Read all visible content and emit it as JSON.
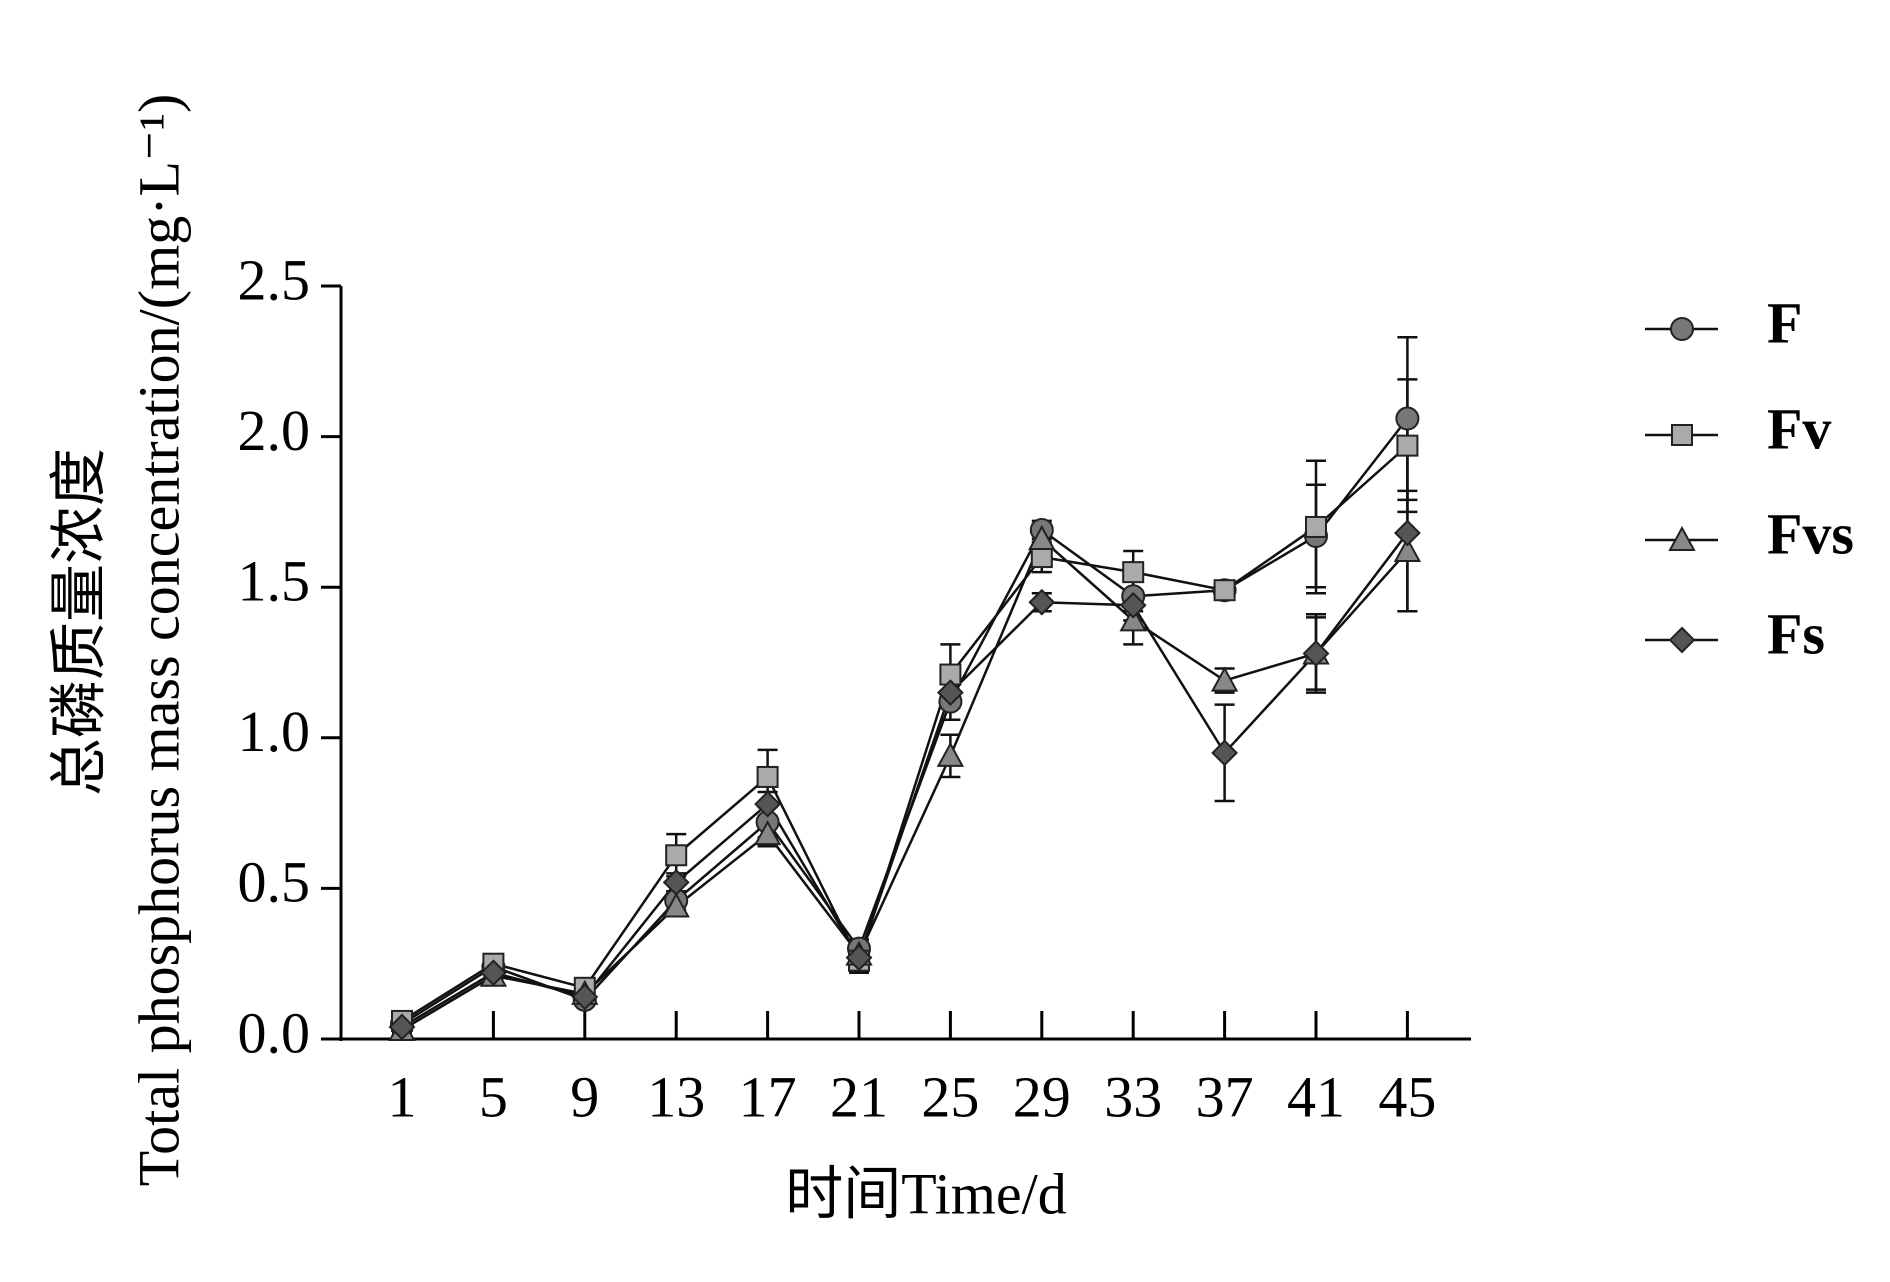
{
  "chart_data": {
    "type": "line",
    "xlabel": "时间Time/d",
    "ylabel": [
      "总磷质量浓度",
      "Total phosphorus mass concentration/(mg·L⁻¹)"
    ],
    "categories": [
      "1",
      "5",
      "9",
      "13",
      "17",
      "21",
      "25",
      "29",
      "33",
      "37",
      "41",
      "45"
    ],
    "ylim": [
      0,
      2.5
    ],
    "yticks": [
      {
        "value": 0,
        "label": "0.0"
      },
      {
        "value": 0.5,
        "label": "0.5"
      },
      {
        "value": 1,
        "label": "1.0"
      },
      {
        "value": 1.5,
        "label": "1.5"
      },
      {
        "value": 2,
        "label": "2.0"
      },
      {
        "value": 2.5,
        "label": "2.5"
      }
    ],
    "legend": "right",
    "series": [
      {
        "name": "F",
        "color": "#777777",
        "marker": "circle",
        "values": [
          0.05,
          0.24,
          0.13,
          0.46,
          0.72,
          0.3,
          1.12,
          1.69,
          1.47,
          1.49,
          1.67,
          2.06
        ],
        "errors": [
          0.01,
          0.03,
          0.02,
          0.03,
          0.05,
          0.03,
          0.06,
          0.03,
          0.05,
          0.03,
          0.17,
          0.27
        ]
      },
      {
        "name": "Fv",
        "color": "#aaaaaa",
        "marker": "square",
        "values": [
          0.06,
          0.25,
          0.17,
          0.61,
          0.87,
          0.26,
          1.21,
          1.6,
          1.55,
          1.49,
          1.7,
          1.97
        ],
        "errors": [
          0.01,
          0.02,
          0.02,
          0.07,
          0.09,
          0.04,
          0.1,
          0.05,
          0.07,
          0.03,
          0.22,
          0.22
        ]
      },
      {
        "name": "Fvs",
        "color": "#888888",
        "marker": "triangle",
        "values": [
          0.03,
          0.21,
          0.15,
          0.44,
          0.68,
          0.28,
          0.94,
          1.66,
          1.39,
          1.19,
          1.28,
          1.62
        ],
        "errors": [
          0.01,
          0.02,
          0.02,
          0.03,
          0.04,
          0.04,
          0.07,
          0.05,
          0.08,
          0.04,
          0.13,
          0.2
        ]
      },
      {
        "name": "Fs",
        "color": "#555555",
        "marker": "diamond",
        "values": [
          0.04,
          0.22,
          0.14,
          0.52,
          0.78,
          0.27,
          1.15,
          1.45,
          1.44,
          0.95,
          1.28,
          1.68
        ],
        "errors": [
          0.01,
          0.02,
          0.02,
          0.03,
          0.04,
          0.03,
          0.05,
          0.03,
          0.05,
          0.16,
          0.12,
          0.26
        ]
      }
    ]
  }
}
